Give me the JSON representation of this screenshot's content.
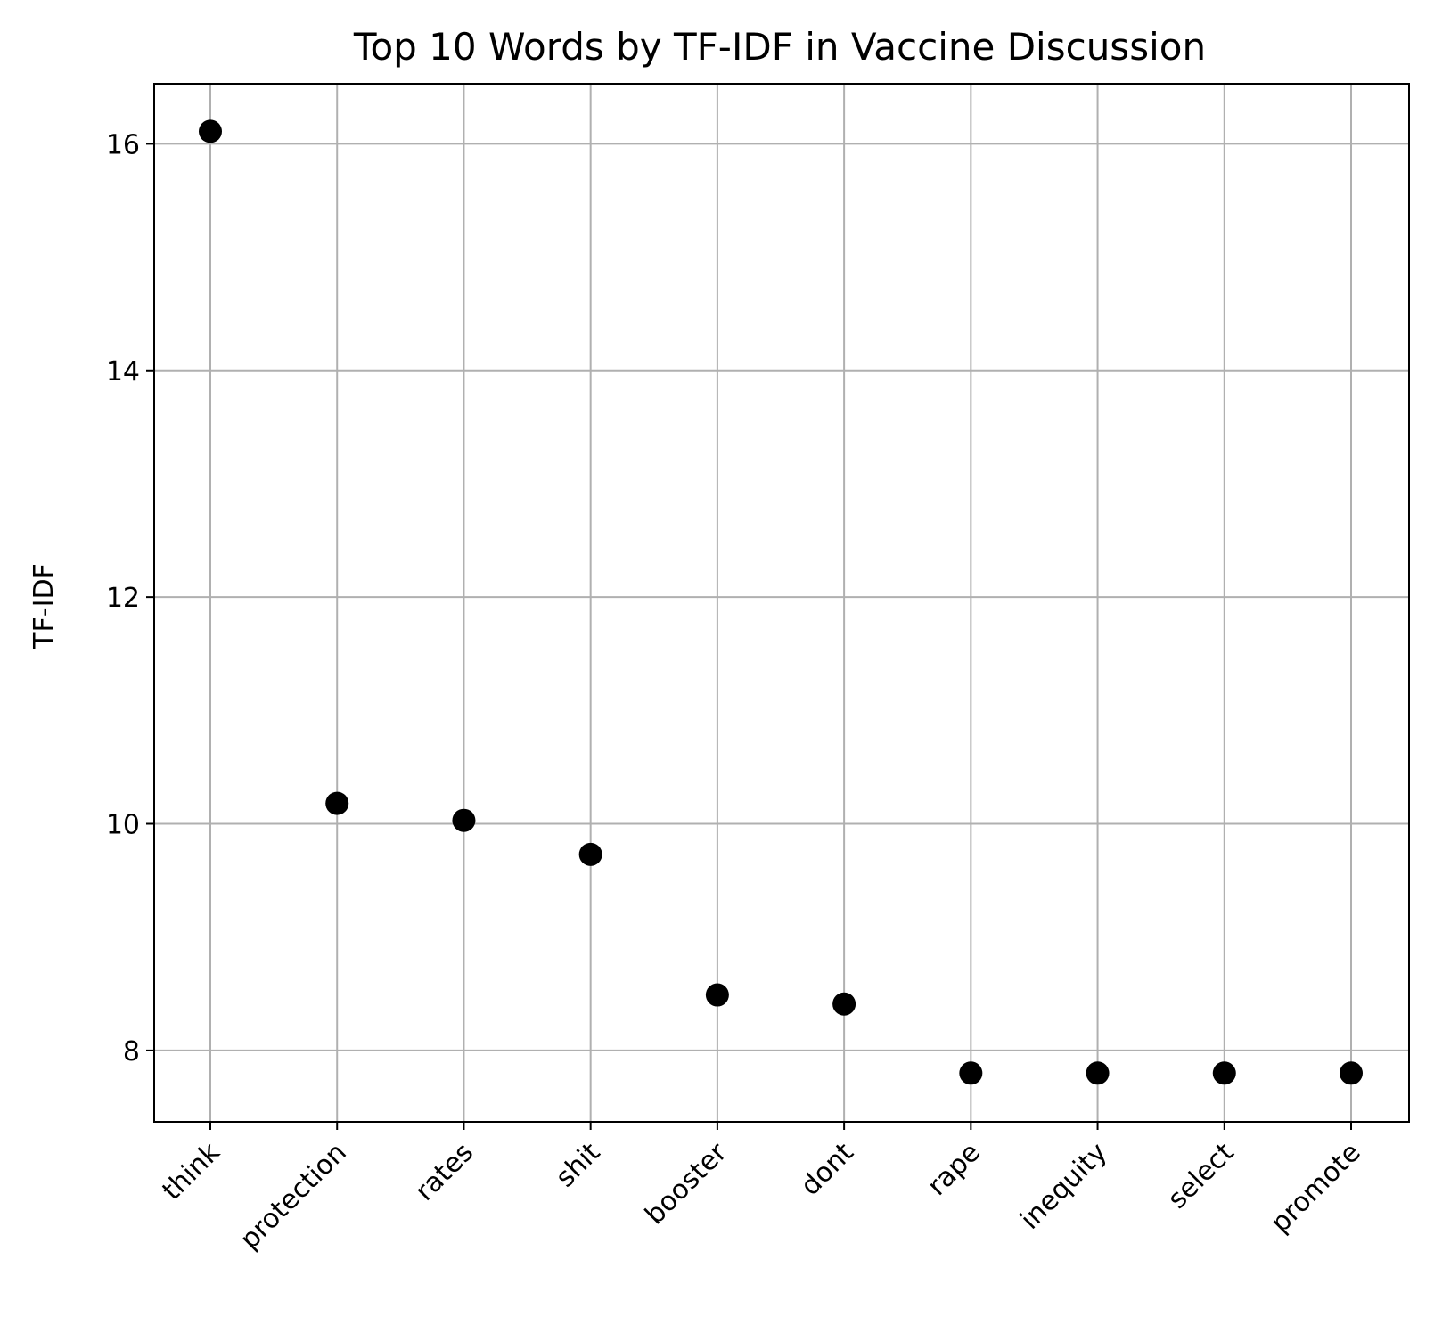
{
  "chart_data": {
    "type": "scatter",
    "title": "Top 10 Words by TF-IDF in Vaccine Discussion",
    "xlabel": "",
    "ylabel": "TF-IDF",
    "categories": [
      "think",
      "protection",
      "rates",
      "shit",
      "booster",
      "dont",
      "rape",
      "inequity",
      "select",
      "promote"
    ],
    "values": [
      16.11,
      10.18,
      10.03,
      9.73,
      8.49,
      8.41,
      7.8,
      7.8,
      7.8,
      7.8
    ],
    "ylim": [
      7.37,
      16.53
    ],
    "yticks": [
      8,
      10,
      12,
      14,
      16
    ],
    "grid": true,
    "marker_color": "#000000",
    "grid_color": "#b0b0b0"
  }
}
